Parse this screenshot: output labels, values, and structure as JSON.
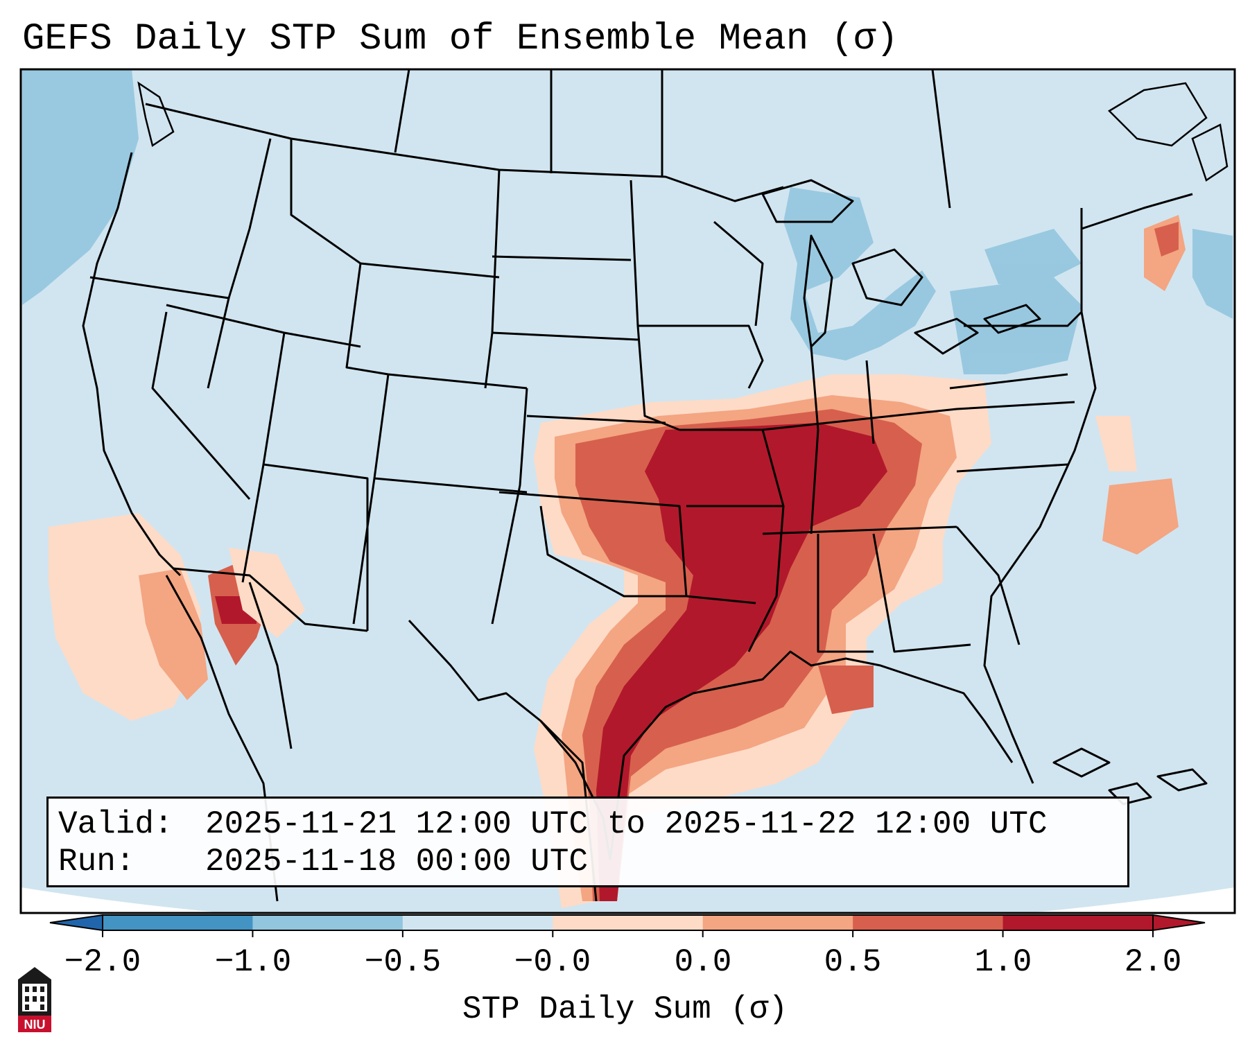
{
  "title": "GEFS Daily STP Sum of Ensemble Mean (σ)",
  "info": {
    "valid_label": "Valid:",
    "valid_value": "2025-11-21 12:00 UTC to 2025-11-22 12:00 UTC",
    "run_label": "Run:",
    "run_value": "2025-11-18 00:00 UTC"
  },
  "colorbar": {
    "label": "STP Daily Sum (σ)",
    "ticks": [
      "−2.0",
      "−1.0",
      "−0.5",
      "−0.0",
      "0.0",
      "0.5",
      "1.0",
      "2.0"
    ],
    "colors": [
      "#4393c3",
      "#92c5de",
      "#d1e5f0",
      "#f7f7f7",
      "#fddbc7",
      "#f4a582",
      "#d6604d",
      "#b2182b"
    ],
    "under_color": "#2166ac",
    "over_color": "#b2182b"
  },
  "map": {
    "background_color": "#d1e5f0",
    "region": "Contiguous United States",
    "features": [
      "state-borders",
      "coastlines",
      "great-lakes"
    ],
    "stp_field_colors": {
      "weak_negative": "#92c5de",
      "low_positive": "#fddbc7",
      "moderate": "#f4a582",
      "high": "#d6604d",
      "extreme": "#b2182b"
    }
  },
  "logo": {
    "text": "NIU"
  }
}
